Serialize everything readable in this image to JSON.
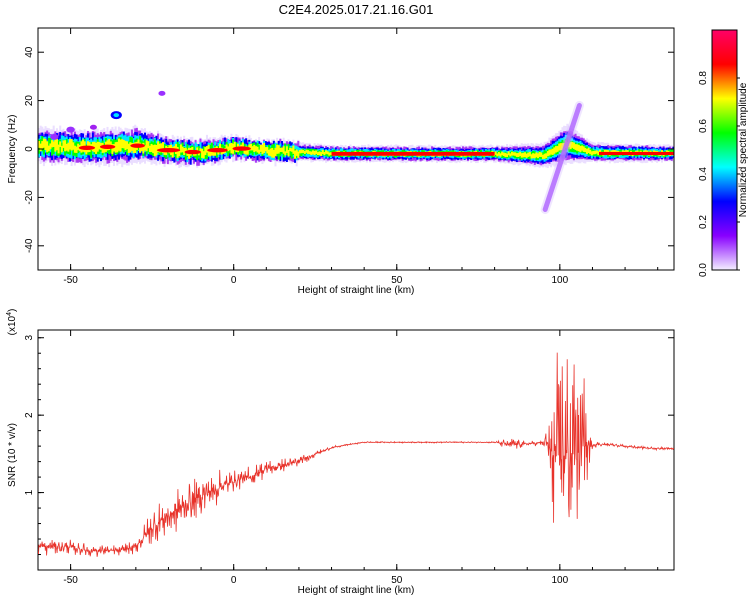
{
  "title": "C2E4.2025.017.21.16.G01",
  "colors": {
    "snr_line": "#e8332b",
    "axis": "#000000",
    "spectrum_background": "#ffffff"
  },
  "chart_data": [
    {
      "type": "heatmap",
      "xlabel": "Height of straight line (km)",
      "ylabel": "Frequency (Hz)",
      "xlim": [
        -60,
        135
      ],
      "ylim": [
        -50,
        50
      ],
      "x_ticks": [
        -50,
        0,
        50,
        100
      ],
      "y_ticks": [
        40,
        20,
        0,
        -20,
        -40
      ],
      "colorbar": {
        "label": "Normalized spectral amplitude",
        "range": [
          0,
          1
        ],
        "ticks": [
          "0.0",
          "0.2",
          "0.4",
          "0.6",
          "0.8"
        ],
        "colors": [
          "#f4f0ff",
          "#8800ff",
          "#0000ff",
          "#00ffff",
          "#00ff00",
          "#ffff00",
          "#ff0000",
          "#ff0066"
        ]
      },
      "ridge": [
        {
          "x": -60,
          "f": 1.5,
          "w": 2
        },
        {
          "x": -45,
          "f": 0.5,
          "w": 2
        },
        {
          "x": -30,
          "f": 1.5,
          "w": 2
        },
        {
          "x": -20,
          "f": -0.5,
          "w": 1.5
        },
        {
          "x": -10,
          "f": -1.5,
          "w": 1.5
        },
        {
          "x": 0,
          "f": 0.5,
          "w": 1.2
        },
        {
          "x": 10,
          "f": -0.8,
          "w": 1.2
        },
        {
          "x": 30,
          "f": -1.8,
          "w": 1.0
        },
        {
          "x": 50,
          "f": -2.0,
          "w": 1.0
        },
        {
          "x": 80,
          "f": -2.0,
          "w": 1.0
        },
        {
          "x": 95,
          "f": -2.8,
          "w": 1.5
        },
        {
          "x": 102,
          "f": 2.0,
          "w": 2.5
        },
        {
          "x": 110,
          "f": -1.5,
          "w": 1.2
        },
        {
          "x": 135,
          "f": -1.8,
          "w": 1.0
        }
      ]
    },
    {
      "type": "line",
      "xlabel": "Height of straight line (km)",
      "ylabel": "SNR (10 * v/v)",
      "y_scale_label": "(x10",
      "y_scale_exp": "4",
      "y_scale_close": ")",
      "xlim": [
        -60,
        135
      ],
      "ylim": [
        0,
        3.1
      ],
      "x_ticks": [
        -50,
        0,
        50,
        100
      ],
      "y_ticks": [
        1,
        2,
        3
      ],
      "series": [
        {
          "x": [
            -60,
            -55,
            -50,
            -45,
            -40,
            -35,
            -30,
            -25,
            -20,
            -15,
            -10,
            -5,
            0,
            5,
            10,
            15,
            20,
            25,
            30,
            35,
            40,
            45,
            50,
            55,
            60,
            65,
            70,
            75,
            80,
            85,
            90,
            95,
            98,
            100,
            102,
            104,
            106,
            108,
            110,
            115,
            120,
            125,
            130,
            135
          ],
          "y": [
            0.3,
            0.3,
            0.3,
            0.25,
            0.25,
            0.25,
            0.3,
            0.55,
            0.7,
            0.85,
            0.95,
            1.05,
            1.15,
            1.2,
            1.3,
            1.35,
            1.4,
            1.5,
            1.58,
            1.62,
            1.65,
            1.65,
            1.65,
            1.65,
            1.65,
            1.65,
            1.65,
            1.65,
            1.65,
            1.62,
            1.63,
            1.65,
            1.5,
            1.45,
            1.5,
            1.5,
            1.55,
            1.6,
            1.62,
            1.62,
            1.6,
            1.58,
            1.57,
            1.57
          ],
          "noise": [
            0.15,
            0.12,
            0.1,
            0.1,
            0.08,
            0.08,
            0.1,
            0.25,
            0.3,
            0.3,
            0.3,
            0.25,
            0.15,
            0.15,
            0.15,
            0.1,
            0.08,
            0.04,
            0.02,
            0.01,
            0.01,
            0.01,
            0.01,
            0.01,
            0.01,
            0.01,
            0.01,
            0.01,
            0.01,
            0.1,
            0.03,
            0.05,
            1.2,
            1.5,
            1.5,
            1.4,
            1.2,
            0.8,
            0.05,
            0.02,
            0.02,
            0.02,
            0.02,
            0.02
          ]
        }
      ]
    }
  ]
}
